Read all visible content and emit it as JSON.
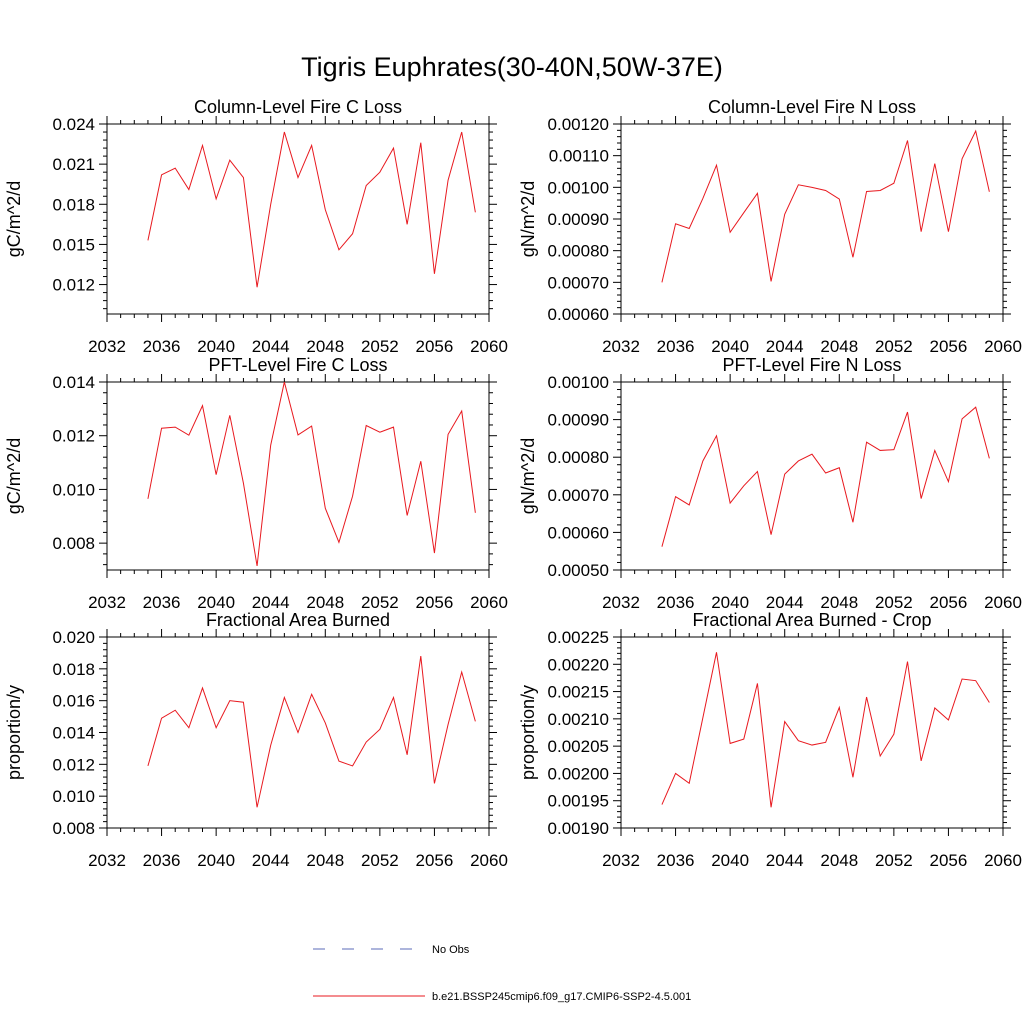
{
  "title": "Tigris Euphrates(30-40N,50W-37E)",
  "series_color": "#e8191f",
  "obs_color": "#5b6bb8",
  "legend": {
    "obs_label": "No Obs",
    "model_label": "b.e21.BSSP245cmip6.f09_g17.CMIP6-SSP2-4.5.001"
  },
  "chart_data": [
    {
      "type": "line",
      "title": "Column-Level Fire C Loss",
      "ylabel": "gC/m^2/d",
      "xlim": [
        2032,
        2060
      ],
      "ylim": [
        0.0098,
        0.024
      ],
      "x_ticks": [
        2032,
        2036,
        2040,
        2044,
        2048,
        2052,
        2056,
        2060
      ],
      "y_ticks": [
        0.012,
        0.015,
        0.018,
        0.021,
        0.024
      ],
      "y_tick_labels": [
        "0.012",
        "0.015",
        "0.018",
        "0.021",
        "0.024"
      ],
      "x": [
        2035,
        2036,
        2037,
        2038,
        2039,
        2040,
        2041,
        2042,
        2043,
        2044,
        2045,
        2046,
        2047,
        2048,
        2049,
        2050,
        2051,
        2052,
        2053,
        2054,
        2055,
        2056,
        2057,
        2058,
        2059
      ],
      "series": [
        {
          "name": "b.e21.BSSP245cmip6.f09_g17.CMIP6-SSP2-4.5.001",
          "values": [
            0.0153,
            0.0202,
            0.0207,
            0.0191,
            0.0224,
            0.0184,
            0.0213,
            0.02,
            0.0118,
            0.018,
            0.0234,
            0.02,
            0.0224,
            0.0176,
            0.0146,
            0.0158,
            0.0194,
            0.0204,
            0.0222,
            0.0165,
            0.0226,
            0.0128,
            0.0198,
            0.0234,
            0.0174
          ]
        }
      ]
    },
    {
      "type": "line",
      "title": "Column-Level Fire N Loss",
      "ylabel": "gN/m^2/d",
      "xlim": [
        2032,
        2060
      ],
      "ylim": [
        0.0006,
        0.0012
      ],
      "x_ticks": [
        2032,
        2036,
        2040,
        2044,
        2048,
        2052,
        2056,
        2060
      ],
      "y_ticks": [
        0.0006,
        0.0007,
        0.0008,
        0.0009,
        0.001,
        0.0011,
        0.0012
      ],
      "y_tick_labels": [
        "0.00060",
        "0.00070",
        "0.00080",
        "0.00090",
        "0.00100",
        "0.00110",
        "0.00120"
      ],
      "x": [
        2035,
        2036,
        2037,
        2038,
        2039,
        2040,
        2041,
        2042,
        2043,
        2044,
        2045,
        2046,
        2047,
        2048,
        2049,
        2050,
        2051,
        2052,
        2053,
        2054,
        2055,
        2056,
        2057,
        2058,
        2059
      ],
      "series": [
        {
          "name": "b.e21.BSSP245cmip6.f09_g17.CMIP6-SSP2-4.5.001",
          "values": [
            0.0007,
            0.000885,
            0.00087,
            0.000965,
            0.00107,
            0.000858,
            0.00092,
            0.000981,
            0.000703,
            0.000915,
            0.001008,
            0.001,
            0.00099,
            0.000963,
            0.000779,
            0.000987,
            0.00099,
            0.001013,
            0.001148,
            0.00086,
            0.001075,
            0.00086,
            0.00109,
            0.001178,
            0.000986
          ]
        }
      ]
    },
    {
      "type": "line",
      "title": "PFT-Level Fire C Loss",
      "ylabel": "gC/m^2/d",
      "xlim": [
        2032,
        2060
      ],
      "ylim": [
        0.007,
        0.014
      ],
      "x_ticks": [
        2032,
        2036,
        2040,
        2044,
        2048,
        2052,
        2056,
        2060
      ],
      "y_ticks": [
        0.008,
        0.01,
        0.012,
        0.014
      ],
      "y_tick_labels": [
        "0.008",
        "0.010",
        "0.012",
        "0.014"
      ],
      "x": [
        2035,
        2036,
        2037,
        2038,
        2039,
        2040,
        2041,
        2042,
        2043,
        2044,
        2045,
        2046,
        2047,
        2048,
        2049,
        2050,
        2051,
        2052,
        2053,
        2054,
        2055,
        2056,
        2057,
        2058,
        2059
      ],
      "series": [
        {
          "name": "b.e21.BSSP245cmip6.f09_g17.CMIP6-SSP2-4.5.001",
          "values": [
            0.00965,
            0.01228,
            0.01232,
            0.01202,
            0.01312,
            0.01055,
            0.01276,
            0.01023,
            0.00715,
            0.01165,
            0.014,
            0.01203,
            0.01236,
            0.0093,
            0.00803,
            0.00975,
            0.01238,
            0.01213,
            0.01232,
            0.00903,
            0.01105,
            0.00763,
            0.01205,
            0.01292,
            0.00913
          ]
        }
      ]
    },
    {
      "type": "line",
      "title": "PFT-Level Fire N Loss",
      "ylabel": "gN/m^2/d",
      "xlim": [
        2032,
        2060
      ],
      "ylim": [
        0.0005,
        0.001
      ],
      "x_ticks": [
        2032,
        2036,
        2040,
        2044,
        2048,
        2052,
        2056,
        2060
      ],
      "y_ticks": [
        0.0005,
        0.0006,
        0.0007,
        0.0008,
        0.0009,
        0.001
      ],
      "y_tick_labels": [
        "0.00050",
        "0.00060",
        "0.00070",
        "0.00080",
        "0.00090",
        "0.00100"
      ],
      "x": [
        2035,
        2036,
        2037,
        2038,
        2039,
        2040,
        2041,
        2042,
        2043,
        2044,
        2045,
        2046,
        2047,
        2048,
        2049,
        2050,
        2051,
        2052,
        2053,
        2054,
        2055,
        2056,
        2057,
        2058,
        2059
      ],
      "series": [
        {
          "name": "b.e21.BSSP245cmip6.f09_g17.CMIP6-SSP2-4.5.001",
          "values": [
            0.000562,
            0.000695,
            0.000673,
            0.00079,
            0.000857,
            0.000678,
            0.000724,
            0.000762,
            0.000594,
            0.000755,
            0.00079,
            0.000808,
            0.000758,
            0.000772,
            0.000627,
            0.00084,
            0.000818,
            0.00082,
            0.00092,
            0.00069,
            0.000818,
            0.000735,
            0.000902,
            0.000933,
            0.000797
          ]
        }
      ]
    },
    {
      "type": "line",
      "title": "Fractional Area Burned",
      "ylabel": "proportion/y",
      "xlim": [
        2032,
        2060
      ],
      "ylim": [
        0.008,
        0.02
      ],
      "x_ticks": [
        2032,
        2036,
        2040,
        2044,
        2048,
        2052,
        2056,
        2060
      ],
      "y_ticks": [
        0.008,
        0.01,
        0.012,
        0.014,
        0.016,
        0.018,
        0.02
      ],
      "y_tick_labels": [
        "0.008",
        "0.010",
        "0.012",
        "0.014",
        "0.016",
        "0.018",
        "0.020"
      ],
      "x": [
        2035,
        2036,
        2037,
        2038,
        2039,
        2040,
        2041,
        2042,
        2043,
        2044,
        2045,
        2046,
        2047,
        2048,
        2049,
        2050,
        2051,
        2052,
        2053,
        2054,
        2055,
        2056,
        2057,
        2058,
        2059
      ],
      "series": [
        {
          "name": "b.e21.BSSP245cmip6.f09_g17.CMIP6-SSP2-4.5.001",
          "values": [
            0.0119,
            0.0149,
            0.0154,
            0.0143,
            0.0168,
            0.0143,
            0.016,
            0.0159,
            0.0093,
            0.0132,
            0.0162,
            0.014,
            0.0164,
            0.0146,
            0.0122,
            0.0119,
            0.0134,
            0.0142,
            0.0162,
            0.0126,
            0.0188,
            0.0108,
            0.0145,
            0.0178,
            0.0147
          ]
        }
      ]
    },
    {
      "type": "line",
      "title": "Fractional Area Burned - Crop",
      "ylabel": "proportion/y",
      "xlim": [
        2032,
        2060
      ],
      "ylim": [
        0.0019,
        0.00225
      ],
      "x_ticks": [
        2032,
        2036,
        2040,
        2044,
        2048,
        2052,
        2056,
        2060
      ],
      "y_ticks": [
        0.0019,
        0.00195,
        0.002,
        0.00205,
        0.0021,
        0.00215,
        0.0022,
        0.00225
      ],
      "y_tick_labels": [
        "0.00190",
        "0.00195",
        "0.00200",
        "0.00205",
        "0.00210",
        "0.00215",
        "0.00220",
        "0.00225"
      ],
      "x": [
        2035,
        2036,
        2037,
        2038,
        2039,
        2040,
        2041,
        2042,
        2043,
        2044,
        2045,
        2046,
        2047,
        2048,
        2049,
        2050,
        2051,
        2052,
        2053,
        2054,
        2055,
        2056,
        2057,
        2058,
        2059
      ],
      "series": [
        {
          "name": "b.e21.BSSP245cmip6.f09_g17.CMIP6-SSP2-4.5.001",
          "values": [
            0.001943,
            0.002,
            0.001982,
            0.002102,
            0.002222,
            0.002055,
            0.002063,
            0.002165,
            0.001938,
            0.002095,
            0.00206,
            0.002052,
            0.002057,
            0.002121,
            0.001993,
            0.00214,
            0.002032,
            0.002072,
            0.002205,
            0.002023,
            0.00212,
            0.002098,
            0.002173,
            0.00217,
            0.00213
          ]
        }
      ]
    }
  ]
}
